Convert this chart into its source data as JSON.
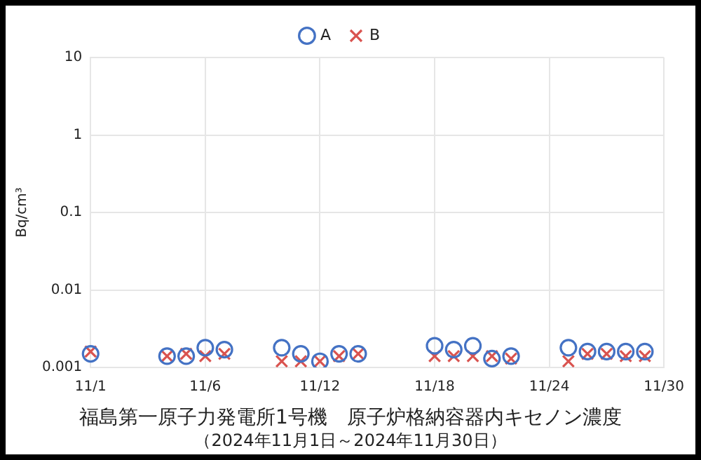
{
  "chart_data": {
    "type": "scatter",
    "title": "福島第一原子力発電所1号機　原子炉格納容器内キセノン濃度",
    "subtitle": "（2024年11月1日～2024年11月30日）",
    "ylabel": "Bq/cm³",
    "categories": [
      "11/1",
      null,
      null,
      null,
      null,
      null,
      "11/6",
      null,
      null,
      null,
      null,
      null,
      "11/12",
      null,
      null,
      null,
      null,
      null,
      "11/18",
      null,
      null,
      null,
      null,
      null,
      "11/24",
      null,
      null,
      null,
      null,
      null,
      "11/30"
    ],
    "series": [
      {
        "name": "A",
        "color": "#4472c4",
        "marker": "circle",
        "values": [
          0.0015,
          null,
          null,
          null,
          0.0014,
          0.0014,
          0.0018,
          0.0017,
          null,
          null,
          0.0018,
          0.0015,
          0.0012,
          0.0015,
          0.0015,
          null,
          null,
          null,
          0.0019,
          0.0017,
          0.0019,
          0.0013,
          0.0014,
          null,
          null,
          0.0018,
          0.0016,
          0.0016,
          0.0016,
          0.0016,
          null
        ]
      },
      {
        "name": "B",
        "color": "#d9534f",
        "marker": "cross",
        "values": [
          0.0016,
          null,
          null,
          null,
          0.0014,
          0.0015,
          0.0014,
          0.0015,
          null,
          null,
          0.0012,
          0.0012,
          0.0012,
          0.0014,
          0.0015,
          null,
          null,
          null,
          0.0014,
          0.0014,
          0.0014,
          0.0014,
          0.0013,
          null,
          null,
          0.0012,
          0.0015,
          0.0015,
          0.0014,
          0.0014,
          null
        ]
      }
    ],
    "ylim": [
      0.001,
      10
    ],
    "yticks": [
      0.001,
      0.01,
      0.1,
      1,
      10
    ],
    "log": "y",
    "grid": true,
    "legend": "top"
  }
}
